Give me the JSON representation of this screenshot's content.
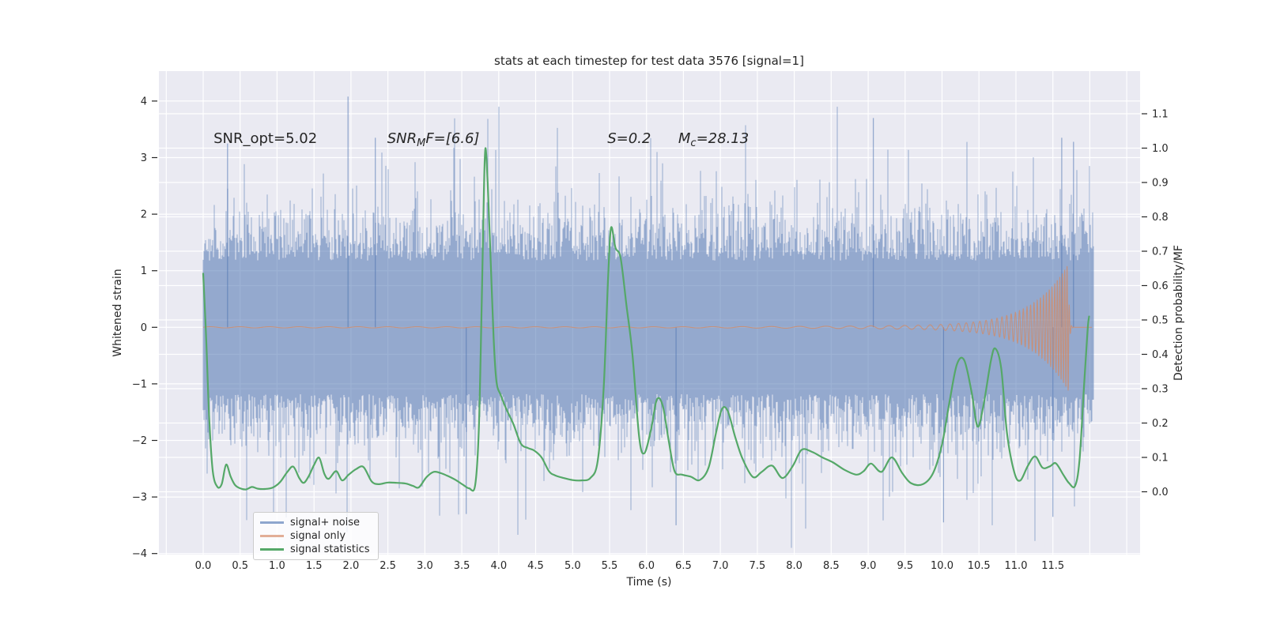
{
  "figure": {
    "title": "stats at each timestep for test data 3576 [signal=1]",
    "background": "#ffffff"
  },
  "axes": {
    "xlabel": "Time (s)",
    "ylabel_left": "Whitened strain",
    "ylabel_right": "Detection probability/MF",
    "background": "#eaeaf2",
    "grid_color": "#ffffff",
    "text_color": "#262626",
    "x_ticks": [
      0.0,
      0.5,
      1.0,
      1.5,
      2.0,
      2.5,
      3.0,
      3.5,
      4.0,
      4.5,
      5.0,
      5.5,
      6.0,
      6.5,
      7.0,
      7.5,
      8.0,
      8.5,
      9.0,
      9.5,
      10.0,
      10.5,
      11.0,
      11.5
    ],
    "x_grid_extra": [
      -0.5,
      12.0,
      12.5
    ],
    "y_ticks_left": [
      4,
      3,
      2,
      1,
      0,
      -1,
      -2,
      -3,
      -4
    ],
    "y_ticks_right": [
      1.1,
      1.0,
      0.9,
      0.8,
      0.7,
      0.6,
      0.5,
      0.4,
      0.3,
      0.2,
      0.1,
      0.0
    ],
    "xlim": [
      -0.6,
      12.67
    ],
    "grid_on": true
  },
  "annotations": [
    {
      "name": "snr-opt",
      "t": 0.14,
      "baseline_strain": 3.26,
      "italic": false,
      "parts": [
        {
          "text": "SNR_opt=5.02"
        }
      ]
    },
    {
      "name": "snr-mf",
      "t": 2.49,
      "baseline_strain": 3.26,
      "italic": true,
      "parts": [
        {
          "text": "SNR"
        },
        {
          "text": "M",
          "sub": true
        },
        {
          "text": "F=[6.6]"
        }
      ]
    },
    {
      "name": "s-value",
      "t": 5.47,
      "baseline_strain": 3.26,
      "italic": true,
      "parts": [
        {
          "text": "S=0.2"
        }
      ]
    },
    {
      "name": "chirp-mass",
      "t": 6.43,
      "baseline_strain": 3.26,
      "italic": true,
      "parts": [
        {
          "text": "M"
        },
        {
          "text": "c",
          "sub": true
        },
        {
          "text": "=28.13"
        }
      ]
    }
  ],
  "chart_data": {
    "type": "line",
    "title": "stats at each timestep for test data 3576 [signal=1]",
    "xlabel": "Time (s)",
    "ylabel": "Whitened strain",
    "ylabel_right": "Detection probability/MF",
    "legend_position": "lower left",
    "legend": [
      {
        "label": "signal+ noise",
        "color": "#8ea6ce"
      },
      {
        "label": "signal only",
        "color": "#e2ae97"
      },
      {
        "label": "signal statistics",
        "color": "#55a868"
      }
    ],
    "series": [
      {
        "name": "signal+ noise",
        "axis": "left",
        "render": "dense-noise",
        "color": "#4c72b0",
        "alpha": 0.55,
        "t_range": [
          0,
          12.05
        ],
        "mean": 0,
        "solid_core_halfwidth": 1.2,
        "typical_peak": 1.8,
        "seed": 3576,
        "pinned_spikes": [
          [
            0.33,
            3.25
          ],
          [
            1.96,
            4.08
          ],
          [
            2.33,
            3.35
          ],
          [
            9.07,
            3.7
          ],
          [
            11.62,
            3.35
          ],
          [
            11.78,
            3.28
          ],
          [
            3.56,
            -3.3
          ],
          [
            6.4,
            -3.5
          ],
          [
            10.02,
            -3.45
          ],
          [
            11.5,
            -3.35
          ]
        ]
      },
      {
        "name": "signal only",
        "axis": "left",
        "render": "chirp",
        "color": "#dd8452",
        "alpha": 0.65,
        "flat_level": 0,
        "chirp_grow_start_t": 6.0,
        "peak_t": 11.71,
        "peak_amplitude": 1.06,
        "end_t": 12.03,
        "start_freq_hz": 2.5,
        "peak_freq_hz": 32.5
      },
      {
        "name": "signal statistics",
        "axis": "right",
        "render": "smooth-line",
        "color": "#55a868",
        "width": 2.2,
        "points": [
          [
            0.0,
            0.635
          ],
          [
            0.04,
            0.45
          ],
          [
            0.08,
            0.22
          ],
          [
            0.13,
            0.06
          ],
          [
            0.19,
            0.015
          ],
          [
            0.25,
            0.022
          ],
          [
            0.31,
            0.079
          ],
          [
            0.37,
            0.045
          ],
          [
            0.43,
            0.02
          ],
          [
            0.5,
            0.01
          ],
          [
            0.58,
            0.007
          ],
          [
            0.66,
            0.014
          ],
          [
            0.74,
            0.009
          ],
          [
            0.83,
            0.008
          ],
          [
            0.94,
            0.012
          ],
          [
            1.04,
            0.028
          ],
          [
            1.14,
            0.058
          ],
          [
            1.22,
            0.073
          ],
          [
            1.3,
            0.04
          ],
          [
            1.36,
            0.026
          ],
          [
            1.43,
            0.046
          ],
          [
            1.5,
            0.078
          ],
          [
            1.57,
            0.099
          ],
          [
            1.64,
            0.052
          ],
          [
            1.7,
            0.038
          ],
          [
            1.8,
            0.06
          ],
          [
            1.88,
            0.033
          ],
          [
            1.97,
            0.05
          ],
          [
            2.07,
            0.066
          ],
          [
            2.17,
            0.072
          ],
          [
            2.28,
            0.03
          ],
          [
            2.38,
            0.022
          ],
          [
            2.5,
            0.027
          ],
          [
            2.62,
            0.026
          ],
          [
            2.74,
            0.024
          ],
          [
            2.84,
            0.017
          ],
          [
            2.92,
            0.013
          ],
          [
            3.02,
            0.042
          ],
          [
            3.12,
            0.058
          ],
          [
            3.22,
            0.054
          ],
          [
            3.32,
            0.045
          ],
          [
            3.42,
            0.034
          ],
          [
            3.52,
            0.02
          ],
          [
            3.6,
            0.01
          ],
          [
            3.68,
            0.018
          ],
          [
            3.73,
            0.18
          ],
          [
            3.77,
            0.55
          ],
          [
            3.8,
            0.88
          ],
          [
            3.82,
            1.0
          ],
          [
            3.85,
            0.9
          ],
          [
            3.89,
            0.68
          ],
          [
            3.93,
            0.45
          ],
          [
            3.97,
            0.32
          ],
          [
            4.03,
            0.28
          ],
          [
            4.1,
            0.242
          ],
          [
            4.2,
            0.196
          ],
          [
            4.3,
            0.14
          ],
          [
            4.4,
            0.127
          ],
          [
            4.48,
            0.12
          ],
          [
            4.58,
            0.1
          ],
          [
            4.68,
            0.06
          ],
          [
            4.76,
            0.048
          ],
          [
            4.88,
            0.04
          ],
          [
            5.0,
            0.034
          ],
          [
            5.12,
            0.033
          ],
          [
            5.24,
            0.04
          ],
          [
            5.34,
            0.09
          ],
          [
            5.42,
            0.3
          ],
          [
            5.48,
            0.62
          ],
          [
            5.52,
            0.768
          ],
          [
            5.58,
            0.71
          ],
          [
            5.65,
            0.68
          ],
          [
            5.73,
            0.54
          ],
          [
            5.81,
            0.4
          ],
          [
            5.9,
            0.16
          ],
          [
            5.97,
            0.112
          ],
          [
            6.06,
            0.18
          ],
          [
            6.14,
            0.268
          ],
          [
            6.22,
            0.25
          ],
          [
            6.3,
            0.15
          ],
          [
            6.38,
            0.06
          ],
          [
            6.48,
            0.05
          ],
          [
            6.6,
            0.044
          ],
          [
            6.72,
            0.034
          ],
          [
            6.84,
            0.07
          ],
          [
            6.94,
            0.17
          ],
          [
            7.02,
            0.24
          ],
          [
            7.1,
            0.235
          ],
          [
            7.2,
            0.16
          ],
          [
            7.3,
            0.096
          ],
          [
            7.44,
            0.043
          ],
          [
            7.56,
            0.058
          ],
          [
            7.7,
            0.076
          ],
          [
            7.84,
            0.04
          ],
          [
            7.98,
            0.075
          ],
          [
            8.1,
            0.122
          ],
          [
            8.24,
            0.116
          ],
          [
            8.38,
            0.1
          ],
          [
            8.52,
            0.086
          ],
          [
            8.68,
            0.064
          ],
          [
            8.84,
            0.05
          ],
          [
            8.94,
            0.06
          ],
          [
            9.04,
            0.082
          ],
          [
            9.18,
            0.058
          ],
          [
            9.32,
            0.1
          ],
          [
            9.46,
            0.055
          ],
          [
            9.58,
            0.025
          ],
          [
            9.74,
            0.022
          ],
          [
            9.88,
            0.055
          ],
          [
            10.0,
            0.138
          ],
          [
            10.1,
            0.26
          ],
          [
            10.2,
            0.37
          ],
          [
            10.3,
            0.383
          ],
          [
            10.4,
            0.29
          ],
          [
            10.48,
            0.19
          ],
          [
            10.56,
            0.25
          ],
          [
            10.66,
            0.38
          ],
          [
            10.72,
            0.417
          ],
          [
            10.8,
            0.36
          ],
          [
            10.88,
            0.17
          ],
          [
            10.98,
            0.055
          ],
          [
            11.06,
            0.033
          ],
          [
            11.16,
            0.075
          ],
          [
            11.26,
            0.103
          ],
          [
            11.36,
            0.07
          ],
          [
            11.46,
            0.074
          ],
          [
            11.54,
            0.083
          ],
          [
            11.64,
            0.05
          ],
          [
            11.72,
            0.025
          ],
          [
            11.8,
            0.017
          ],
          [
            11.86,
            0.09
          ],
          [
            11.92,
            0.3
          ],
          [
            11.97,
            0.47
          ],
          [
            11.99,
            0.51
          ]
        ]
      }
    ]
  }
}
